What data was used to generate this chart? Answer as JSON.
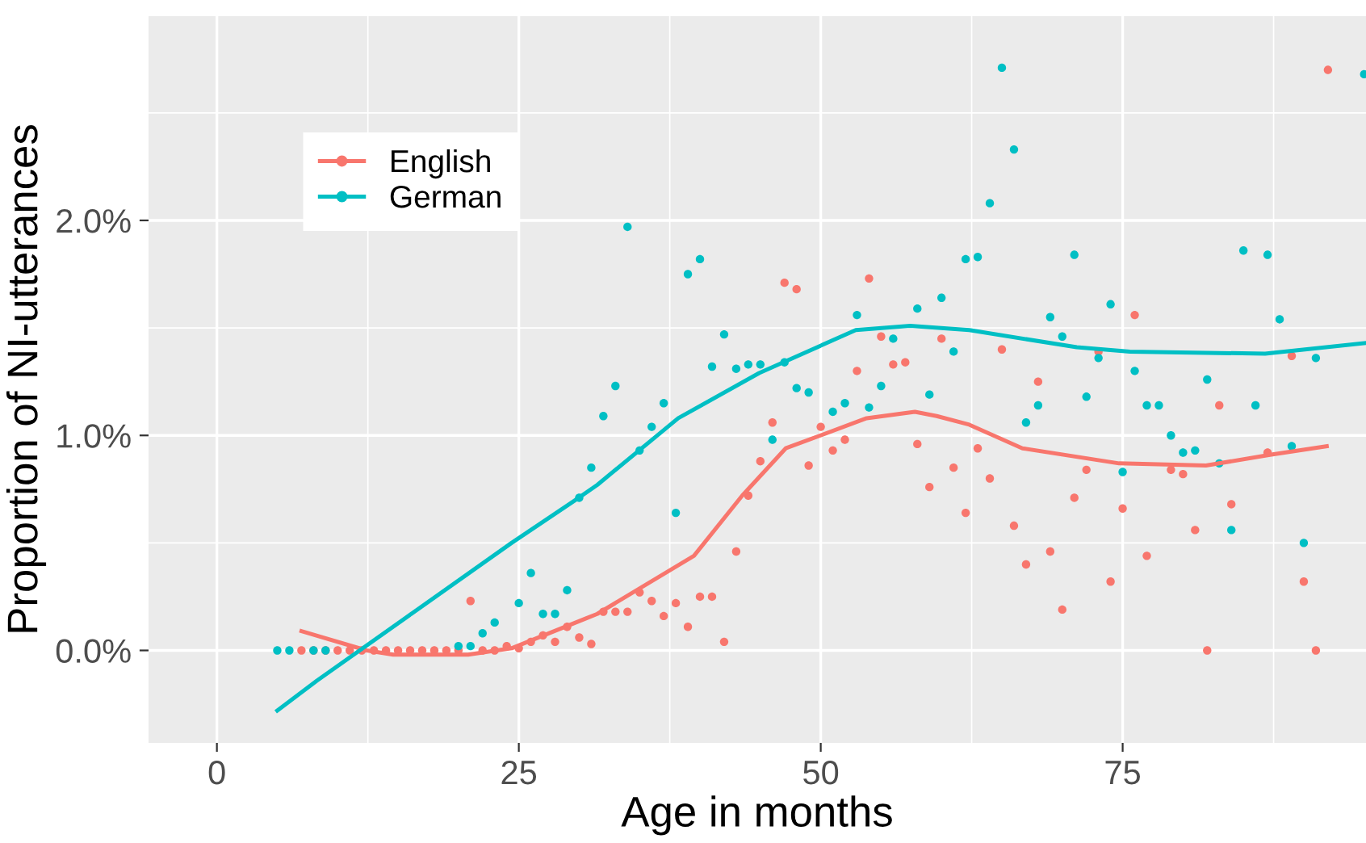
{
  "chart_data": {
    "type": "scatter",
    "xlabel": "Age in months",
    "ylabel": "Proportion of NI-utterances",
    "xlim": [
      -5.66,
      95.15
    ],
    "ylim": [
      -0.43,
      2.95
    ],
    "xticks": [
      0,
      25,
      50,
      75
    ],
    "yticks": [
      {
        "value": 0,
        "label": "0.0%"
      },
      {
        "value": 1,
        "label": "1.0%"
      },
      {
        "value": 2,
        "label": "2.0%"
      }
    ],
    "grid": true,
    "legend": "top left",
    "marker": "circle",
    "series": [
      {
        "name": "English",
        "color": "#f8766d",
        "x": [
          7,
          8,
          9,
          10,
          11,
          12,
          13,
          14,
          15,
          16,
          17,
          18,
          19,
          20,
          21,
          22,
          23,
          24,
          25,
          26,
          27,
          28,
          29,
          30,
          31,
          32,
          33,
          34,
          35,
          36,
          37,
          38,
          39,
          40,
          41,
          42,
          43,
          44,
          45,
          46,
          47,
          48,
          49,
          50,
          51,
          52,
          53,
          54,
          55,
          56,
          57,
          58,
          59,
          60,
          61,
          62,
          63,
          64,
          65,
          66,
          67,
          68,
          69,
          70,
          71,
          72,
          73,
          74,
          75,
          76,
          77,
          79,
          80,
          81,
          82,
          83,
          84,
          87,
          89,
          90,
          91,
          92
        ],
        "values": [
          0,
          0,
          0,
          0,
          0,
          0,
          0,
          0,
          0,
          0,
          0,
          0,
          0,
          0,
          0.23,
          0,
          0,
          0.02,
          0.01,
          0.04,
          0.07,
          0.04,
          0.11,
          0.06,
          0.03,
          0.18,
          0.18,
          0.18,
          0.27,
          0.23,
          0.16,
          0.22,
          0.11,
          0.25,
          0.25,
          0.04,
          0.46,
          0.72,
          0.88,
          1.06,
          1.71,
          1.68,
          0.86,
          1.04,
          0.93,
          0.98,
          1.3,
          1.73,
          1.46,
          1.33,
          1.34,
          0.96,
          0.76,
          1.45,
          0.85,
          0.64,
          0.94,
          0.8,
          1.4,
          0.58,
          0.4,
          1.25,
          0.46,
          0.19,
          0.71,
          0.84,
          1.39,
          0.32,
          0.66,
          1.56,
          0.44,
          0.84,
          0.82,
          0.56,
          0,
          1.14,
          0.68,
          0.92,
          1.37,
          0.32,
          0,
          2.7
        ]
      },
      {
        "name": "German",
        "color": "#00bfc4",
        "x": [
          5,
          6,
          8,
          9,
          20,
          21,
          22,
          23,
          25,
          26,
          27,
          28,
          29,
          30,
          31,
          32,
          33,
          34,
          35,
          36,
          37,
          38,
          39,
          40,
          41,
          42,
          43,
          44,
          45,
          46,
          47,
          48,
          49,
          51,
          52,
          53,
          54,
          55,
          56,
          58,
          59,
          60,
          61,
          62,
          63,
          64,
          65,
          66,
          67,
          68,
          69,
          70,
          71,
          72,
          73,
          74,
          75,
          76,
          77,
          78,
          79,
          80,
          81,
          82,
          83,
          84,
          85,
          86,
          87,
          88,
          89,
          90,
          91,
          95
        ],
        "values": [
          0,
          0,
          0,
          0,
          0.02,
          0.02,
          0.08,
          0.13,
          0.22,
          0.36,
          0.17,
          0.17,
          0.28,
          0.71,
          0.85,
          1.09,
          1.23,
          1.97,
          0.93,
          1.04,
          1.15,
          0.64,
          1.75,
          1.82,
          1.32,
          1.47,
          1.31,
          1.33,
          1.33,
          0.98,
          1.34,
          1.22,
          1.2,
          1.11,
          1.15,
          1.56,
          1.13,
          1.23,
          1.45,
          1.59,
          1.19,
          1.64,
          1.39,
          1.82,
          1.83,
          2.08,
          2.71,
          2.33,
          1.06,
          1.14,
          1.55,
          1.46,
          1.84,
          1.18,
          1.36,
          1.61,
          0.83,
          1.3,
          1.14,
          1.14,
          1.0,
          0.92,
          0.93,
          1.26,
          0.87,
          0.56,
          1.86,
          1.14,
          1.84,
          1.54,
          0.95,
          0.5,
          1.36,
          2.68
        ]
      },
      {
        "type": "line",
        "marker": "none",
        "color": "#f8766d",
        "x": [
          7,
          12.4,
          14.6,
          20.8,
          24.4,
          30.6,
          31.5,
          39.5,
          43.5,
          47.1,
          53.8,
          57.8,
          59.6,
          62.3,
          66.7,
          74.7,
          81.9,
          87.2,
          91.9
        ],
        "values": [
          0.09,
          0.0,
          -0.02,
          -0.02,
          0.01,
          0.15,
          0.17,
          0.44,
          0.72,
          0.94,
          1.08,
          1.11,
          1.09,
          1.05,
          0.94,
          0.87,
          0.86,
          0.91,
          0.95
        ]
      },
      {
        "type": "line",
        "marker": "none",
        "color": "#00bfc4",
        "x": [
          5,
          8.3,
          24.4,
          29.7,
          31.5,
          38.2,
          44.9,
          52.9,
          57.4,
          62.3,
          71.2,
          75.6,
          86.8,
          95.1
        ],
        "values": [
          -0.28,
          -0.14,
          0.5,
          0.7,
          0.77,
          1.08,
          1.29,
          1.49,
          1.51,
          1.49,
          1.41,
          1.39,
          1.38,
          1.43
        ]
      }
    ]
  }
}
